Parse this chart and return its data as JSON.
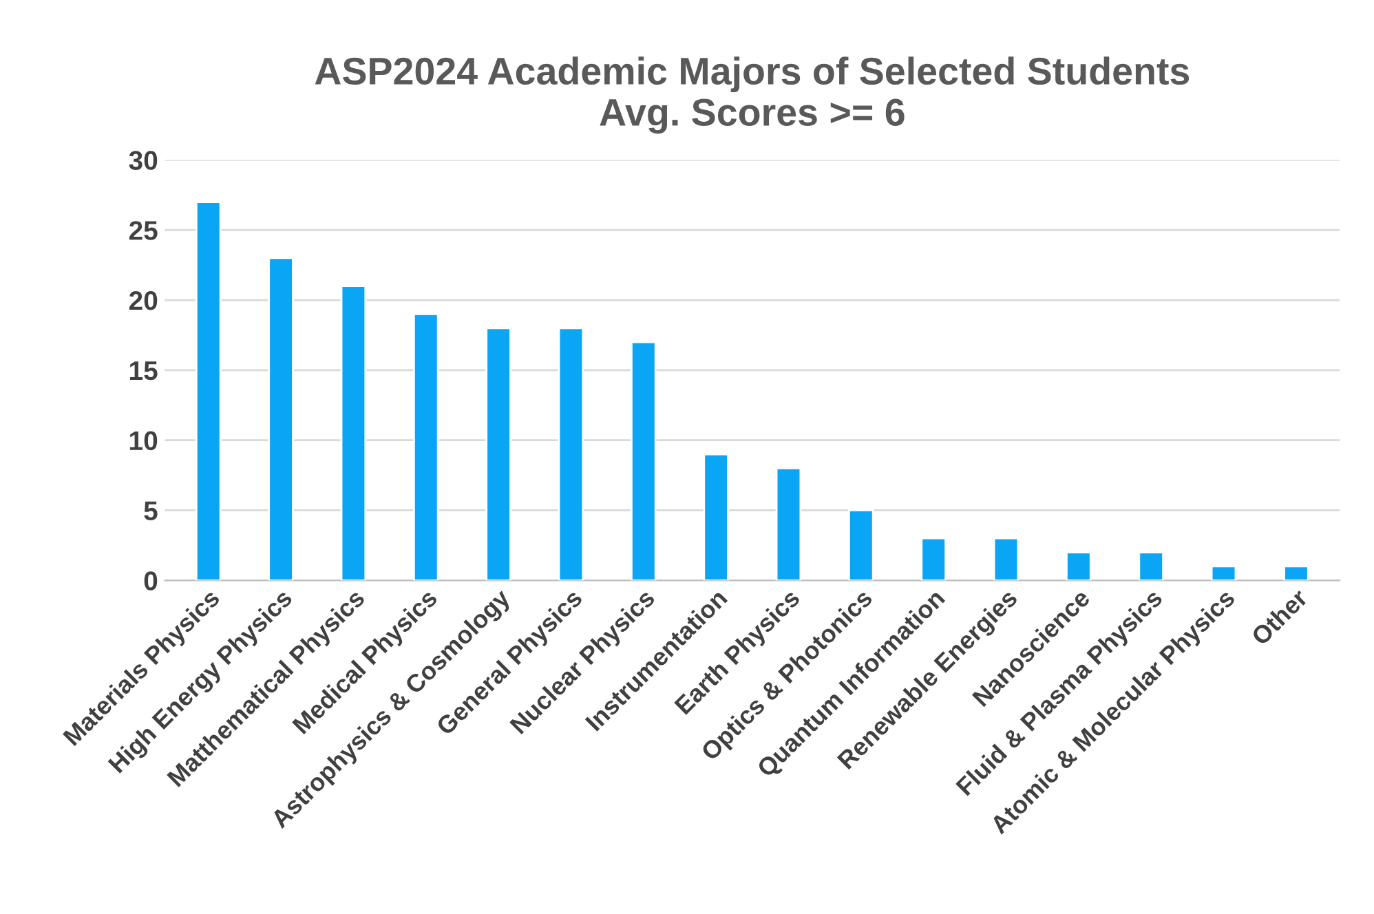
{
  "chart_data": {
    "type": "bar",
    "title": "ASP2024 Academic Majors of Selected Students\nAvg. Scores >= 6",
    "categories": [
      "Materials Physics",
      "High Energy Physics",
      "Matthematical Physics",
      "Medical Physics",
      "Astrophysics & Cosmology",
      "General Physics",
      "Nuclear Physics",
      "Instrumentation",
      "Earth Physics",
      "Optics & Photonics",
      "Quantum Information",
      "Renewable Energies",
      "Nanoscience",
      "Fluid & Plasma Physics",
      "Atomic & Molecular Physics",
      "Other"
    ],
    "values": [
      27,
      23,
      21,
      19,
      18,
      18,
      17,
      9,
      8,
      5,
      3,
      3,
      2,
      2,
      1,
      1
    ],
    "color": "#0aa6f5",
    "ylim": [
      0,
      30
    ],
    "yticks": [
      0,
      5,
      10,
      15,
      20,
      25,
      30
    ],
    "grid": "y"
  }
}
